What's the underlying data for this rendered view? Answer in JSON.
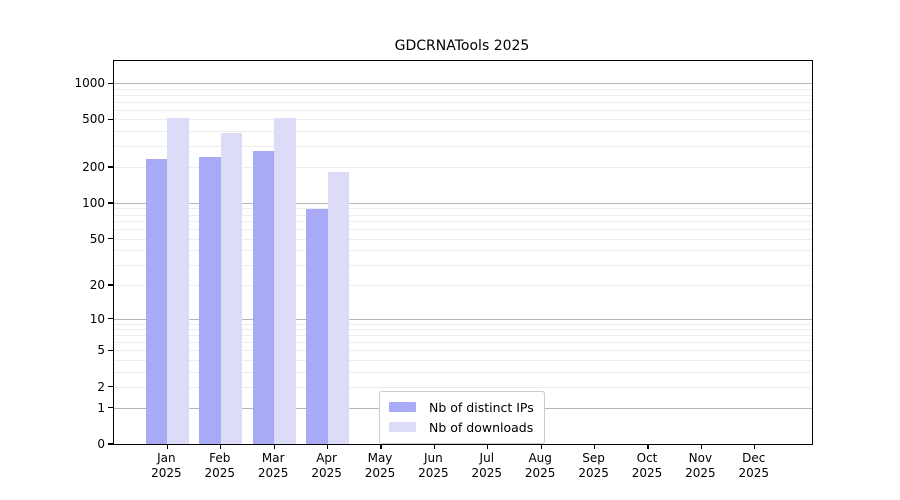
{
  "colors": {
    "distinct_ips": "#a9aaf6",
    "downloads": "#dcdcf9",
    "grid_major": "#b5b5b5",
    "grid_minor": "#ededed",
    "spine": "#000000",
    "legend_border": "#cccccc"
  },
  "chart_data": {
    "type": "bar",
    "title": "GDCRNATools 2025",
    "categories": [
      "Jan 2025",
      "Feb 2025",
      "Mar 2025",
      "Apr 2025",
      "May 2025",
      "Jun 2025",
      "Jul 2025",
      "Aug 2025",
      "Sep 2025",
      "Oct 2025",
      "Nov 2025",
      "Dec 2025"
    ],
    "series": [
      {
        "name": "Nb of distinct IPs",
        "color": "#a9aaf6",
        "values": [
          235,
          242,
          272,
          89,
          null,
          null,
          null,
          null,
          null,
          null,
          null,
          null
        ]
      },
      {
        "name": "Nb of downloads",
        "color": "#dcdcf9",
        "values": [
          510,
          388,
          515,
          181,
          null,
          null,
          null,
          null,
          null,
          null,
          null,
          null
        ]
      }
    ],
    "xlabel": "",
    "ylabel": "",
    "yscale": "symlog_log1p",
    "yticks": [
      0,
      1,
      2,
      5,
      10,
      20,
      50,
      100,
      200,
      500,
      1000
    ],
    "ylim": [
      0,
      1530
    ],
    "grid": "horizontal, minor 2-9 per decade",
    "legend_position": "inside bottom-center"
  }
}
